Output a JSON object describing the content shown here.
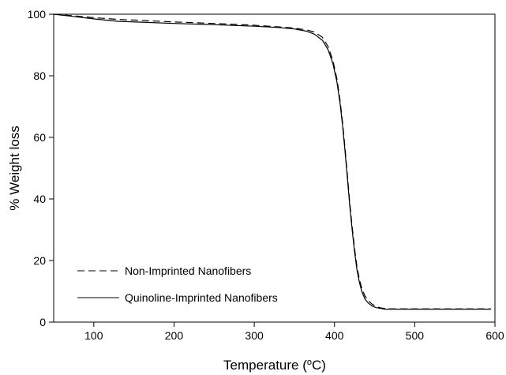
{
  "chart_data": {
    "type": "line",
    "title": "",
    "xlabel_main": "Temperature (",
    "xlabel_sup": "o",
    "xlabel_unit": "C)",
    "ylabel": "% Weight loss",
    "xlim": [
      50,
      600
    ],
    "ylim": [
      0,
      100
    ],
    "xticks": [
      100,
      200,
      300,
      400,
      500,
      600
    ],
    "yticks": [
      0,
      20,
      40,
      60,
      80,
      100
    ],
    "grid": false,
    "legend_position": "bottom-left",
    "series": [
      {
        "name": "Non-Imprinted Nanofibers",
        "style": "dashed",
        "color": "#000000",
        "points": [
          [
            50,
            100
          ],
          [
            70,
            99.6
          ],
          [
            100,
            98.9
          ],
          [
            130,
            98.3
          ],
          [
            160,
            98.0
          ],
          [
            200,
            97.5
          ],
          [
            250,
            97.0
          ],
          [
            300,
            96.4
          ],
          [
            330,
            95.9
          ],
          [
            350,
            95.5
          ],
          [
            365,
            94.9
          ],
          [
            375,
            94.2
          ],
          [
            385,
            92.5
          ],
          [
            392,
            89.5
          ],
          [
            398,
            85
          ],
          [
            403,
            79
          ],
          [
            407,
            72
          ],
          [
            410,
            65
          ],
          [
            413,
            57
          ],
          [
            416,
            48
          ],
          [
            419,
            39
          ],
          [
            422,
            31
          ],
          [
            425,
            24
          ],
          [
            428,
            18
          ],
          [
            431,
            14
          ],
          [
            434,
            11
          ],
          [
            438,
            8.5
          ],
          [
            442,
            7
          ],
          [
            447,
            5.8
          ],
          [
            452,
            5.1
          ],
          [
            458,
            4.6
          ],
          [
            463,
            4.4
          ],
          [
            470,
            4.3
          ],
          [
            500,
            4.3
          ],
          [
            550,
            4.3
          ],
          [
            595,
            4.3
          ]
        ]
      },
      {
        "name": "Quinoline-Imprinted Nanofibers",
        "style": "solid",
        "color": "#000000",
        "points": [
          [
            50,
            100
          ],
          [
            70,
            99.4
          ],
          [
            100,
            98.5
          ],
          [
            130,
            97.7
          ],
          [
            160,
            97.4
          ],
          [
            200,
            97.0
          ],
          [
            250,
            96.6
          ],
          [
            300,
            96.1
          ],
          [
            330,
            95.7
          ],
          [
            350,
            95.2
          ],
          [
            365,
            94.5
          ],
          [
            375,
            93.5
          ],
          [
            385,
            91.5
          ],
          [
            392,
            88.5
          ],
          [
            398,
            84
          ],
          [
            403,
            78
          ],
          [
            407,
            71
          ],
          [
            410,
            64
          ],
          [
            413,
            56
          ],
          [
            416,
            47
          ],
          [
            419,
            38
          ],
          [
            422,
            30
          ],
          [
            425,
            23
          ],
          [
            428,
            17
          ],
          [
            431,
            13
          ],
          [
            434,
            10
          ],
          [
            438,
            7.5
          ],
          [
            442,
            6.2
          ],
          [
            447,
            5.2
          ],
          [
            452,
            4.7
          ],
          [
            458,
            4.4
          ],
          [
            463,
            4.2
          ],
          [
            470,
            4.2
          ],
          [
            500,
            4.2
          ],
          [
            550,
            4.2
          ],
          [
            595,
            4.2
          ]
        ]
      }
    ]
  }
}
